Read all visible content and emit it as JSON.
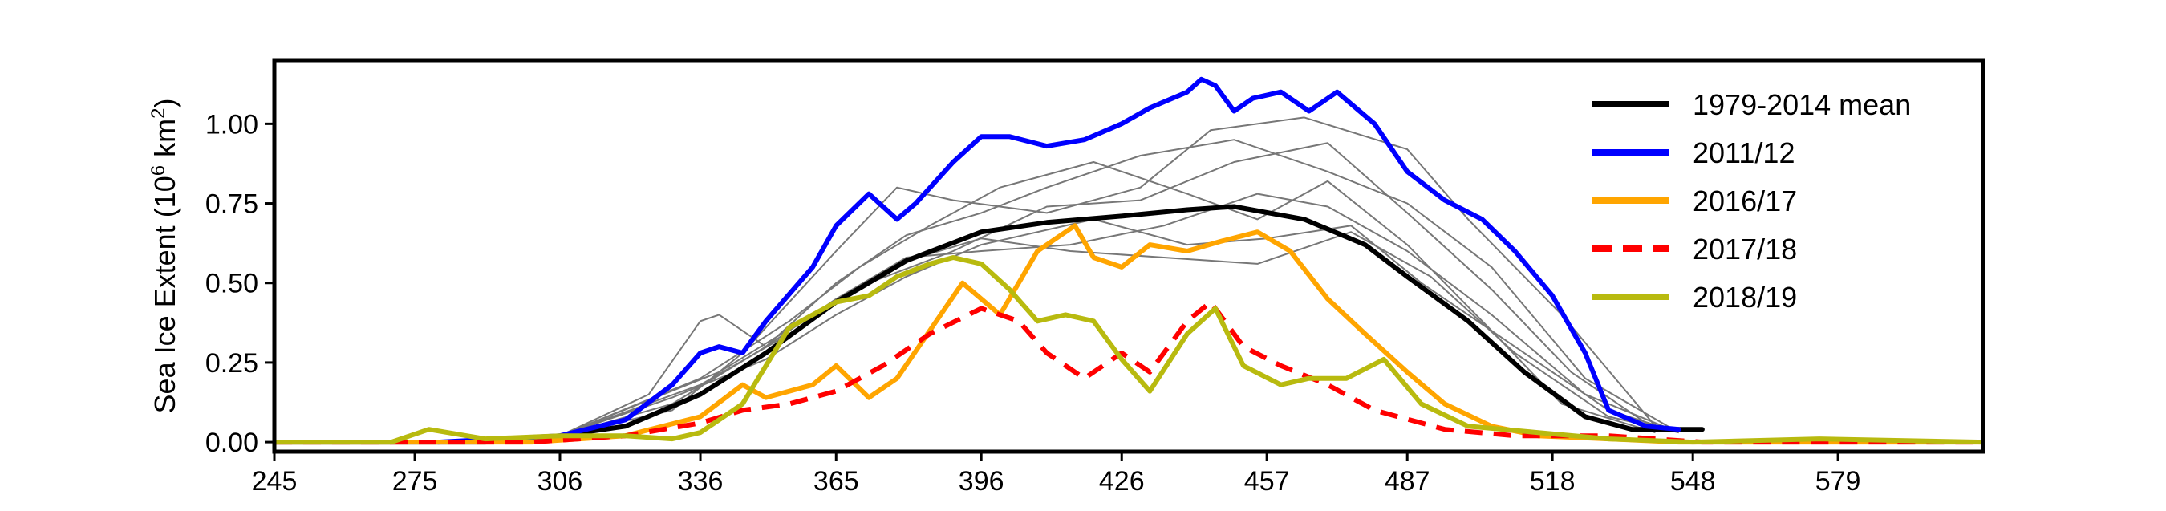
{
  "chart_data": {
    "type": "line",
    "ylabel": "Sea Ice Extent (10",
    "ylabel_sup": "6",
    "ylabel_unit": " km",
    "ylabel_sup2": "2",
    "ylabel_close": ")",
    "xlim": [
      245,
      610
    ],
    "ylim": [
      -0.03,
      1.2
    ],
    "xticks": [
      245,
      275,
      306,
      336,
      365,
      396,
      426,
      457,
      487,
      518,
      548,
      579
    ],
    "yticks": [
      0.0,
      0.25,
      0.5,
      0.75,
      1.0
    ],
    "ytick_labels": [
      "0.00",
      "0.25",
      "0.50",
      "0.75",
      "1.00"
    ],
    "grid": false,
    "legend_position": "top-right",
    "series": [
      {
        "name": "1979-2014 mean",
        "color": "#000000",
        "style": "solid",
        "width": 6,
        "x": [
          245,
          290,
          306,
          320,
          336,
          350,
          365,
          380,
          396,
          410,
          426,
          440,
          450,
          465,
          478,
          487,
          500,
          512,
          525,
          535,
          545,
          550
        ],
        "y": [
          0.0,
          0.0,
          0.02,
          0.05,
          0.15,
          0.28,
          0.44,
          0.57,
          0.66,
          0.69,
          0.71,
          0.73,
          0.74,
          0.7,
          0.62,
          0.52,
          0.38,
          0.22,
          0.08,
          0.04,
          0.04,
          0.04
        ]
      },
      {
        "name": "2011/12",
        "color": "#0000ff",
        "style": "solid",
        "width": 6,
        "x": [
          280,
          306,
          320,
          330,
          336,
          340,
          345,
          350,
          360,
          365,
          372,
          378,
          382,
          390,
          396,
          402,
          410,
          418,
          426,
          432,
          440,
          443,
          446,
          450,
          454,
          460,
          466,
          472,
          480,
          487,
          495,
          503,
          510,
          518,
          525,
          530,
          538,
          545
        ],
        "y": [
          0.0,
          0.02,
          0.07,
          0.18,
          0.28,
          0.3,
          0.28,
          0.38,
          0.55,
          0.68,
          0.78,
          0.7,
          0.75,
          0.88,
          0.96,
          0.96,
          0.93,
          0.95,
          1.0,
          1.05,
          1.1,
          1.14,
          1.12,
          1.04,
          1.08,
          1.1,
          1.04,
          1.1,
          1.0,
          0.85,
          0.76,
          0.7,
          0.6,
          0.46,
          0.28,
          0.1,
          0.05,
          0.04
        ]
      },
      {
        "name": "2016/17",
        "color": "#ffa500",
        "style": "solid",
        "width": 6,
        "x": [
          245,
          300,
          320,
          336,
          345,
          350,
          360,
          365,
          372,
          378,
          385,
          392,
          400,
          408,
          416,
          420,
          426,
          432,
          440,
          447,
          455,
          462,
          470,
          478,
          487,
          495,
          505,
          515,
          530,
          545,
          560,
          580,
          610
        ],
        "y": [
          0.0,
          0.0,
          0.02,
          0.08,
          0.18,
          0.14,
          0.18,
          0.24,
          0.14,
          0.2,
          0.35,
          0.5,
          0.4,
          0.6,
          0.68,
          0.58,
          0.55,
          0.62,
          0.6,
          0.63,
          0.66,
          0.6,
          0.45,
          0.34,
          0.22,
          0.12,
          0.05,
          0.02,
          0.01,
          0.0,
          0.0,
          0.0,
          0.0
        ]
      },
      {
        "name": "2017/18",
        "color": "#ff0000",
        "style": "dashed",
        "width": 6,
        "x": [
          245,
          300,
          320,
          336,
          345,
          355,
          365,
          375,
          385,
          396,
          404,
          410,
          418,
          426,
          432,
          440,
          445,
          452,
          460,
          470,
          480,
          495,
          510,
          530,
          550,
          580,
          610
        ],
        "y": [
          0.0,
          0.0,
          0.02,
          0.06,
          0.1,
          0.12,
          0.16,
          0.24,
          0.34,
          0.42,
          0.38,
          0.28,
          0.2,
          0.28,
          0.22,
          0.38,
          0.44,
          0.3,
          0.24,
          0.18,
          0.1,
          0.04,
          0.02,
          0.02,
          0.0,
          0.0,
          0.0
        ]
      },
      {
        "name": "2018/19",
        "color": "#b8ba0f",
        "style": "solid",
        "width": 6,
        "x": [
          245,
          270,
          278,
          290,
          306,
          320,
          330,
          336,
          345,
          355,
          365,
          372,
          378,
          385,
          390,
          396,
          402,
          408,
          414,
          420,
          426,
          432,
          440,
          446,
          452,
          460,
          466,
          474,
          482,
          490,
          500,
          515,
          530,
          548,
          575,
          610
        ],
        "y": [
          0.0,
          0.0,
          0.04,
          0.01,
          0.02,
          0.02,
          0.01,
          0.03,
          0.12,
          0.36,
          0.44,
          0.46,
          0.52,
          0.56,
          0.58,
          0.56,
          0.48,
          0.38,
          0.4,
          0.38,
          0.26,
          0.16,
          0.34,
          0.42,
          0.24,
          0.18,
          0.2,
          0.2,
          0.26,
          0.12,
          0.05,
          0.03,
          0.01,
          0.0,
          0.01,
          0.0
        ]
      }
    ],
    "background_series": [
      {
        "name": "",
        "color": "#777777",
        "style": "solid",
        "width": 2,
        "x": [
          306,
          325,
          336,
          340,
          350,
          365,
          380,
          396,
          410,
          430,
          450,
          470,
          487,
          505,
          525,
          545
        ],
        "y": [
          0.02,
          0.15,
          0.38,
          0.4,
          0.3,
          0.5,
          0.65,
          0.72,
          0.8,
          0.9,
          0.95,
          0.85,
          0.75,
          0.55,
          0.2,
          0.03
        ]
      },
      {
        "name": "",
        "color": "#777777",
        "style": "solid",
        "width": 2,
        "x": [
          306,
          330,
          345,
          365,
          378,
          390,
          410,
          430,
          445,
          465,
          487,
          500,
          520,
          540
        ],
        "y": [
          0.02,
          0.1,
          0.28,
          0.6,
          0.8,
          0.76,
          0.72,
          0.8,
          0.98,
          1.02,
          0.92,
          0.7,
          0.4,
          0.05
        ]
      },
      {
        "name": "",
        "color": "#777777",
        "style": "solid",
        "width": 2,
        "x": [
          306,
          330,
          350,
          365,
          380,
          396,
          415,
          435,
          455,
          470,
          487,
          505,
          525,
          545
        ],
        "y": [
          0.02,
          0.12,
          0.3,
          0.45,
          0.58,
          0.6,
          0.62,
          0.68,
          0.78,
          0.74,
          0.6,
          0.4,
          0.15,
          0.03
        ]
      },
      {
        "name": "",
        "color": "#777777",
        "style": "solid",
        "width": 2,
        "x": [
          306,
          336,
          355,
          370,
          385,
          400,
          420,
          440,
          455,
          470,
          487,
          505,
          520,
          540
        ],
        "y": [
          0.02,
          0.2,
          0.38,
          0.55,
          0.68,
          0.8,
          0.88,
          0.78,
          0.7,
          0.82,
          0.62,
          0.35,
          0.12,
          0.03
        ]
      },
      {
        "name": "",
        "color": "#777777",
        "style": "solid",
        "width": 2,
        "x": [
          306,
          330,
          350,
          365,
          380,
          396,
          420,
          440,
          457,
          475,
          490,
          510,
          530,
          545
        ],
        "y": [
          0.02,
          0.14,
          0.26,
          0.4,
          0.52,
          0.62,
          0.7,
          0.62,
          0.64,
          0.68,
          0.5,
          0.3,
          0.1,
          0.03
        ]
      },
      {
        "name": "",
        "color": "#777777",
        "style": "solid",
        "width": 2,
        "x": [
          306,
          336,
          355,
          372,
          390,
          410,
          430,
          450,
          470,
          487,
          505,
          522,
          540
        ],
        "y": [
          0.02,
          0.18,
          0.34,
          0.5,
          0.6,
          0.74,
          0.76,
          0.88,
          0.94,
          0.72,
          0.48,
          0.22,
          0.04
        ]
      },
      {
        "name": "",
        "color": "#777777",
        "style": "solid",
        "width": 2,
        "x": [
          306,
          340,
          360,
          378,
          396,
          415,
          435,
          455,
          475,
          492,
          510,
          530,
          545
        ],
        "y": [
          0.02,
          0.22,
          0.4,
          0.56,
          0.64,
          0.6,
          0.58,
          0.56,
          0.66,
          0.52,
          0.28,
          0.08,
          0.03
        ]
      }
    ]
  }
}
